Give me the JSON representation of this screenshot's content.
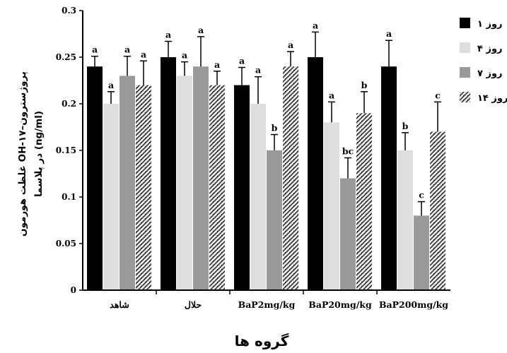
{
  "chart_data": {
    "type": "bar",
    "categories": [
      "شاهد",
      "حلال",
      "BaP2mg/kg",
      "BaP20mg/kg",
      "BaP200mg/kg"
    ],
    "series": [
      {
        "name": "روز ۱",
        "color": "#000000",
        "values": [
          0.24,
          0.25,
          0.22,
          0.25,
          0.24
        ],
        "errors": [
          0.011,
          0.017,
          0.019,
          0.027,
          0.028
        ],
        "labels": [
          "a",
          "a",
          "a",
          "a",
          "a"
        ]
      },
      {
        "name": "روز ۴",
        "color": "#dedede",
        "values": [
          0.2,
          0.23,
          0.2,
          0.18,
          0.15
        ],
        "errors": [
          0.013,
          0.015,
          0.029,
          0.022,
          0.019
        ],
        "labels": [
          "a",
          "a",
          "a",
          "a",
          "b"
        ]
      },
      {
        "name": "روز ۷",
        "color": "#999999",
        "values": [
          0.23,
          0.24,
          0.15,
          0.12,
          0.08
        ],
        "errors": [
          0.021,
          0.032,
          0.017,
          0.022,
          0.015
        ],
        "labels": [
          "a",
          "a",
          "b",
          "bc",
          "c"
        ]
      },
      {
        "name": "روز ۱۴",
        "color": "pattern",
        "values": [
          0.22,
          0.22,
          0.24,
          0.19,
          0.17
        ],
        "errors": [
          0.026,
          0.015,
          0.016,
          0.023,
          0.032
        ],
        "labels": [
          "a",
          "a",
          "a",
          "b",
          "c"
        ]
      }
    ],
    "ylim": [
      0,
      0.3
    ],
    "yticks": [
      "0",
      "0.05",
      "0.1",
      "0.15",
      "0.2",
      "0.25",
      "0.3"
    ],
    "ylabel_line1": "غلظت هورمون OH-۱۷–پروژسترون",
    "ylabel_line2": "در پلاسما (ng/ml)",
    "xlabel": "گروه ها",
    "legend_position": "right"
  }
}
